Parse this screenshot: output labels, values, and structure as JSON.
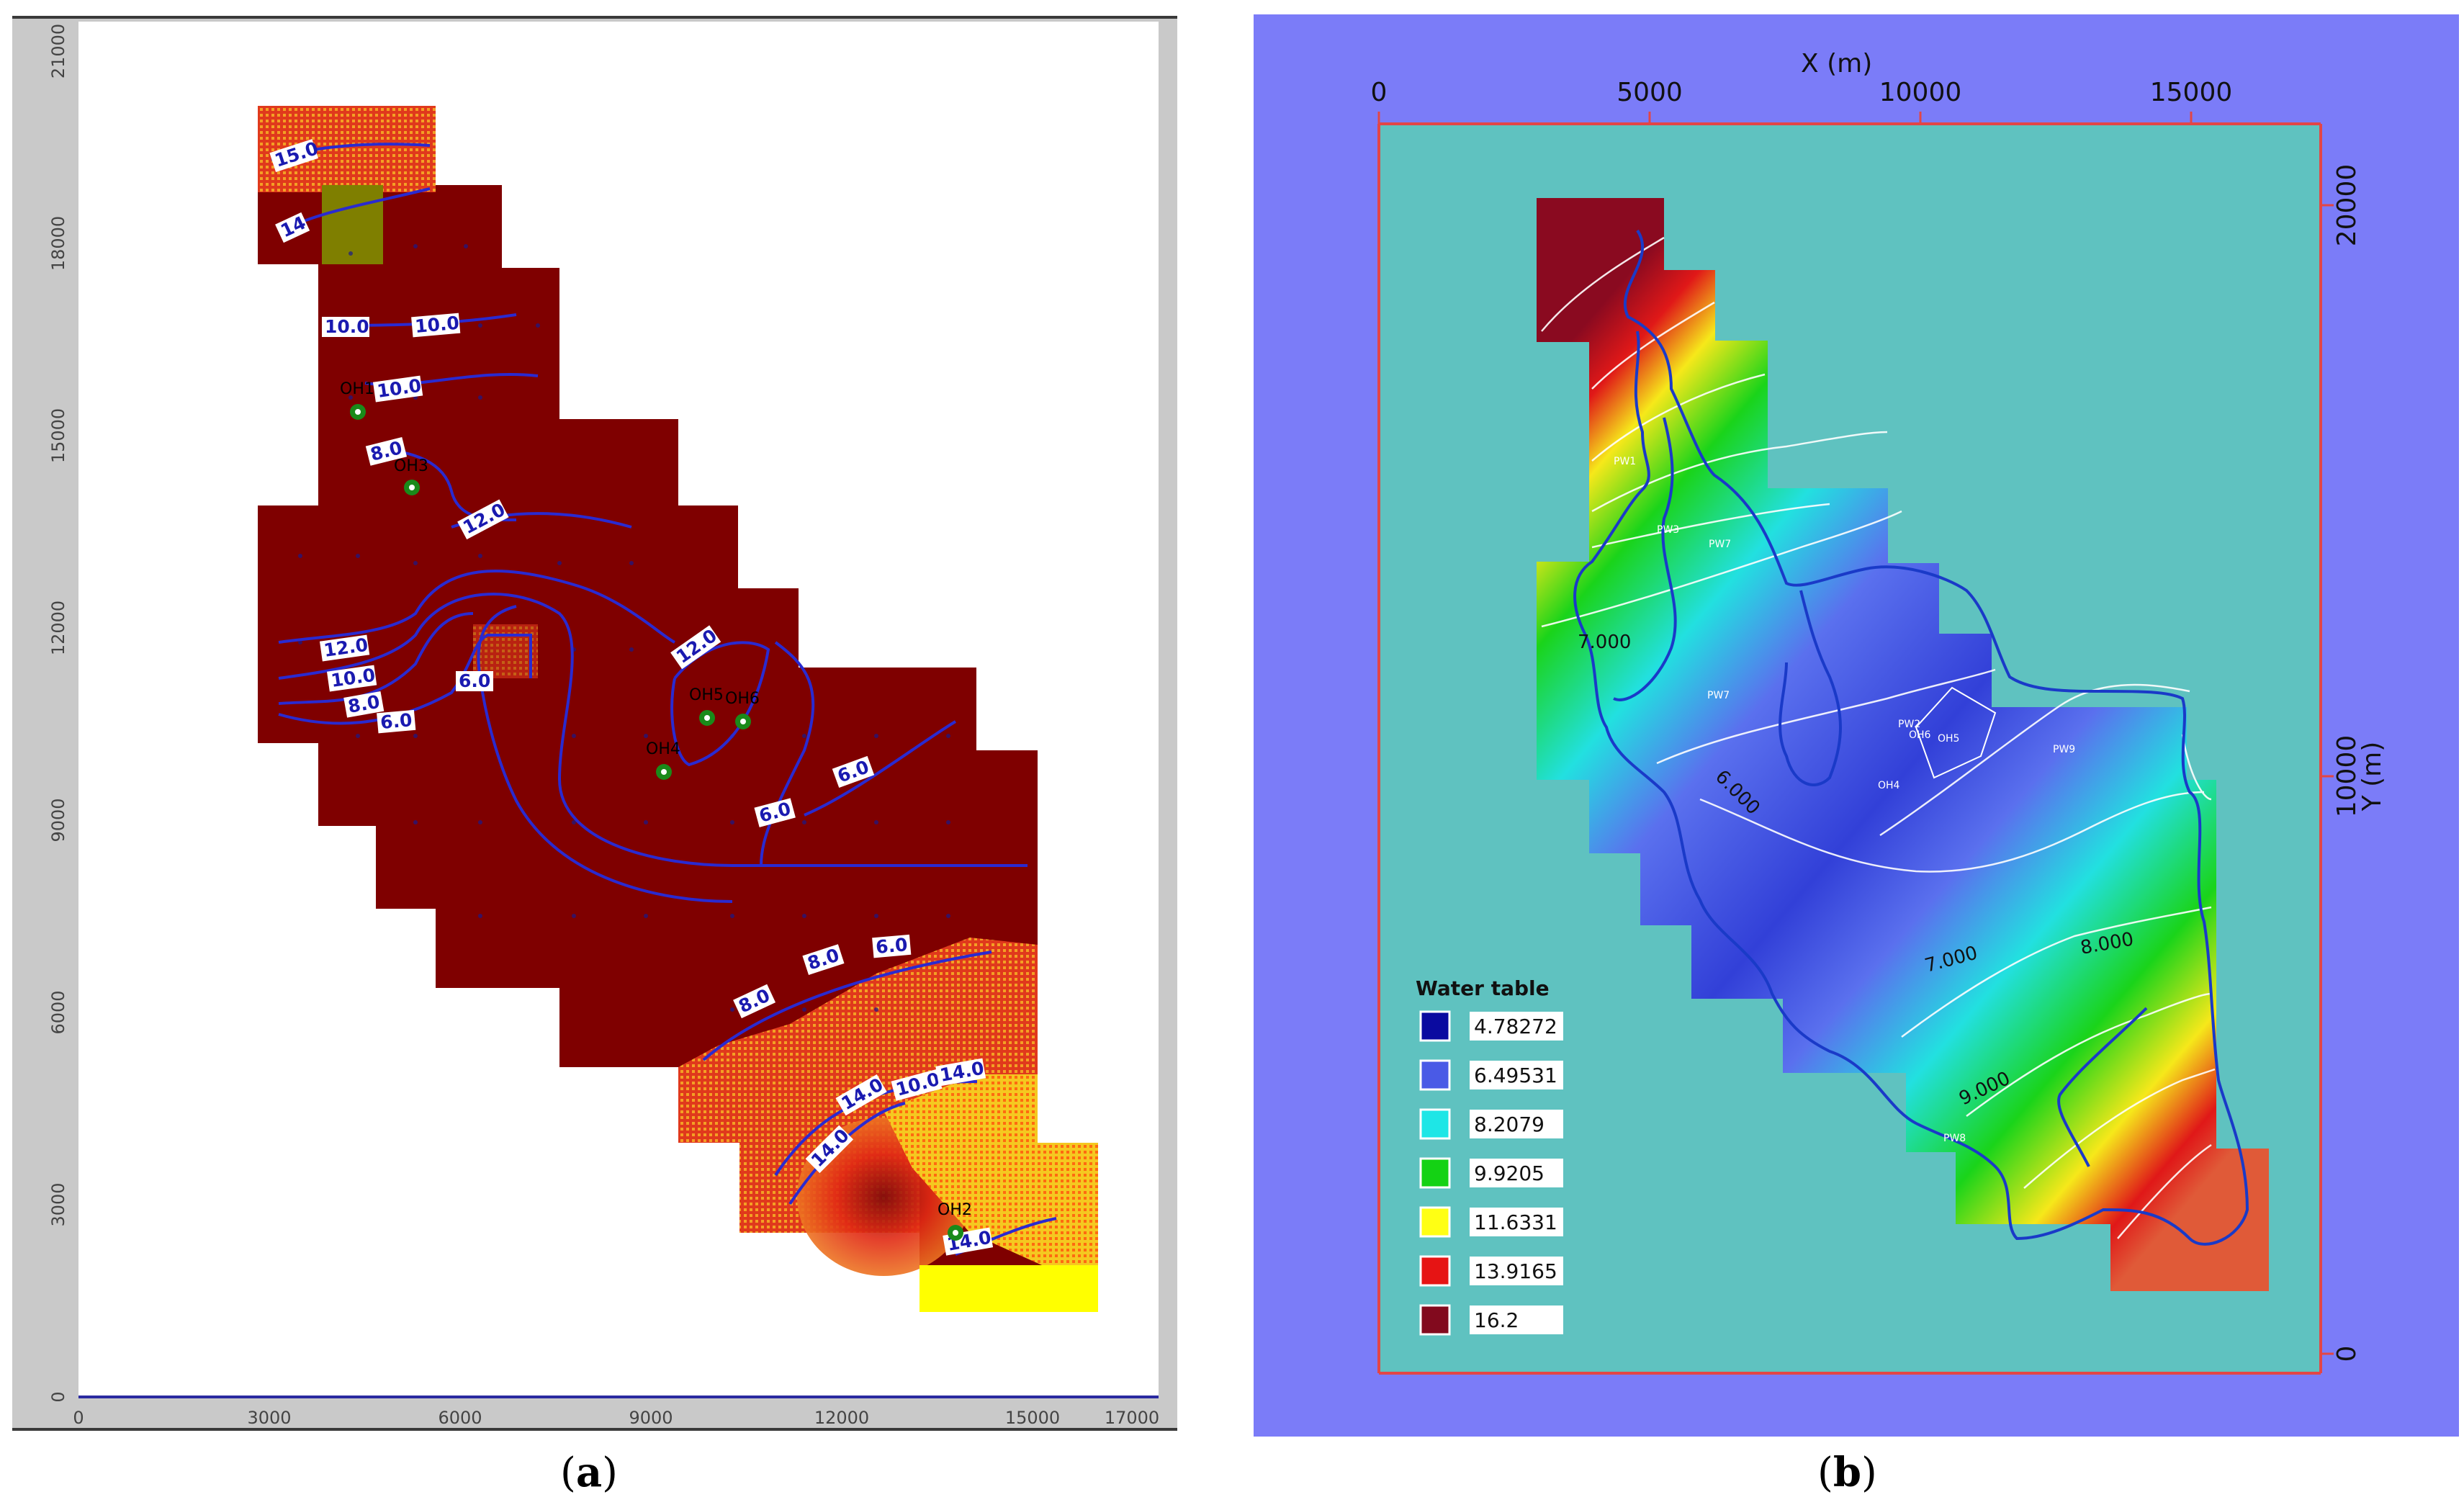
{
  "panel_a": {
    "caption_letter": "a",
    "x_ticks": [
      "0",
      "3000",
      "6000",
      "9000",
      "12000",
      "15000",
      "17000"
    ],
    "y_ticks": [
      "0",
      "3000",
      "6000",
      "9000",
      "12000",
      "15000",
      "18000",
      "21000"
    ],
    "contour_labels": [
      "15.0",
      "10.0",
      "10.0",
      "10.0",
      "10.0",
      "8.0",
      "12.0",
      "12.0",
      "10.0",
      "8.0",
      "6.0",
      "6.0",
      "12.0",
      "6.0",
      "6.0",
      "6.0",
      "8.0",
      "8.0",
      "14.0",
      "14.0",
      "14.0",
      "14.0",
      "14.0",
      "10.0"
    ],
    "wells": [
      "OH1",
      "OH3",
      "OH4",
      "OH5",
      "OH6",
      "OH2"
    ]
  },
  "panel_b": {
    "caption_letter": "b",
    "x_axis_title": "X (m)",
    "y_axis_title": "Y (m)",
    "x_ticks": [
      "0",
      "5000",
      "10000",
      "15000"
    ],
    "y_ticks": [
      "20000",
      "10000",
      "0"
    ],
    "contour_labels": [
      "7.000",
      "6.000",
      "7.000",
      "8.000",
      "9.000"
    ],
    "well_labels": [
      "PW1",
      "PW3",
      "PW7",
      "PW2",
      "OH6",
      "OH5",
      "PW9",
      "OH4",
      "PW8"
    ],
    "legend": {
      "title": "Water table",
      "items": [
        {
          "value": "4.78272",
          "color": "#0a0aa0"
        },
        {
          "value": "6.49531",
          "color": "#4a5ae6"
        },
        {
          "value": "8.2079",
          "color": "#1ee6e6"
        },
        {
          "value": "9.9205",
          "color": "#14d214"
        },
        {
          "value": "11.6331",
          "color": "#ffff14"
        },
        {
          "value": "13.9165",
          "color": "#e61414"
        },
        {
          "value": "16.2",
          "color": "#820a1e"
        }
      ]
    },
    "colors": {
      "frame": "#7b7cf8",
      "plot_bg": "#5fc2c0",
      "axis": "#e24646"
    }
  }
}
